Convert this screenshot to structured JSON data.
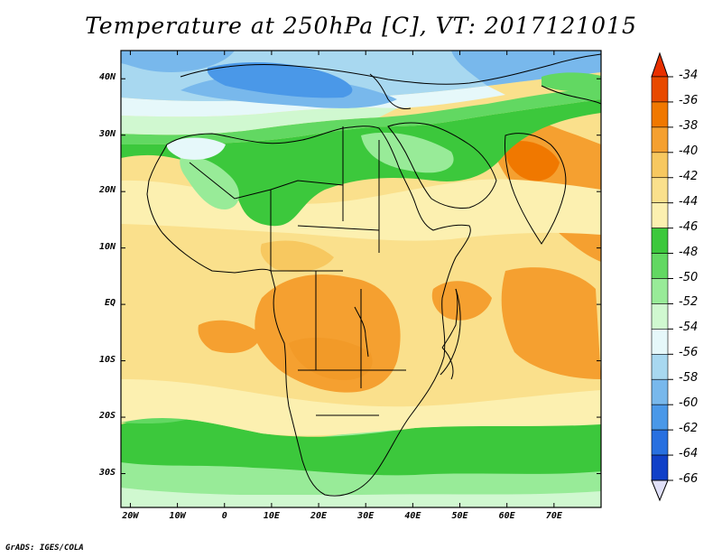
{
  "title": "Temperature at 250hPa [C], VT: 2017121015",
  "credit": "GrADS: IGES/COLA",
  "lat_labels": [
    {
      "lat": 40,
      "label": "40N"
    },
    {
      "lat": 30,
      "label": "30N"
    },
    {
      "lat": 20,
      "label": "20N"
    },
    {
      "lat": 10,
      "label": "10N"
    },
    {
      "lat": 0,
      "label": "EQ"
    },
    {
      "lat": -10,
      "label": "10S"
    },
    {
      "lat": -20,
      "label": "20S"
    },
    {
      "lat": -30,
      "label": "30S"
    }
  ],
  "lon_labels": [
    {
      "lon": -20,
      "label": "20W"
    },
    {
      "lon": -10,
      "label": "10W"
    },
    {
      "lon": 0,
      "label": "0"
    },
    {
      "lon": 10,
      "label": "10E"
    },
    {
      "lon": 20,
      "label": "20E"
    },
    {
      "lon": 30,
      "label": "30E"
    },
    {
      "lon": 40,
      "label": "40E"
    },
    {
      "lon": 50,
      "label": "50E"
    },
    {
      "lon": 60,
      "label": "60E"
    },
    {
      "lon": 70,
      "label": "70E"
    }
  ],
  "colorbar": {
    "labels": [
      "-34",
      "-36",
      "-38",
      "-40",
      "-42",
      "-44",
      "-46",
      "-48",
      "-50",
      "-52",
      "-54",
      "-56",
      "-58",
      "-60",
      "-62",
      "-64",
      "-66"
    ],
    "colors": [
      "#f0f0f0",
      "#e84a00",
      "#f07800",
      "#f5a030",
      "#f7c860",
      "#fae08c",
      "#fcf0b0",
      "#3cc83c",
      "#62d862",
      "#98eb98",
      "#d0f8d0",
      "#e6f8fa",
      "#a8d8f0",
      "#78b8ec",
      "#4a98e8",
      "#2870e0",
      "#1040c8",
      "#0020a0",
      "#0a0a6a"
    ],
    "top_arrow_color": "#e83000",
    "bottom_arrow_color": "#e0e0f8"
  },
  "map_extent": {
    "lon_min": -22,
    "lon_max": 80,
    "lat_min": -36,
    "lat_max": 45
  }
}
